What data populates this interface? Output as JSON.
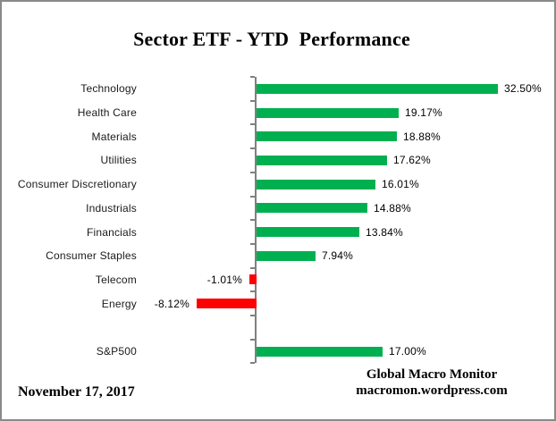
{
  "chart_data": {
    "type": "bar",
    "orientation": "horizontal",
    "title": "Sector ETF - YTD  Performance",
    "categories": [
      "Technology",
      "Health Care",
      "Materials",
      "Utilities",
      "Consumer Discretionary",
      "Industrials",
      "Financials",
      "Consumer Staples",
      "Telecom",
      "Energy",
      "",
      "S&P500"
    ],
    "values": [
      32.5,
      19.17,
      18.88,
      17.62,
      16.01,
      14.88,
      13.84,
      7.94,
      -1.01,
      -8.12,
      null,
      17.0
    ],
    "value_labels": [
      "32.50%",
      "19.17%",
      "18.88%",
      "17.62%",
      "16.01%",
      "14.88%",
      "13.84%",
      "7.94%",
      "-1.01%",
      "-8.12%",
      "",
      "17.00%"
    ],
    "xlabel": "",
    "ylabel": "",
    "xlim": [
      -10,
      35
    ],
    "grid": false,
    "legend": false,
    "colors": {
      "positive": "#00B050",
      "negative": "#FF0000",
      "axis": "#808080"
    }
  },
  "footer": {
    "date": "November 17, 2017",
    "source_line1": "Global Macro Monitor",
    "source_line2": "macromon.wordpress.com"
  }
}
